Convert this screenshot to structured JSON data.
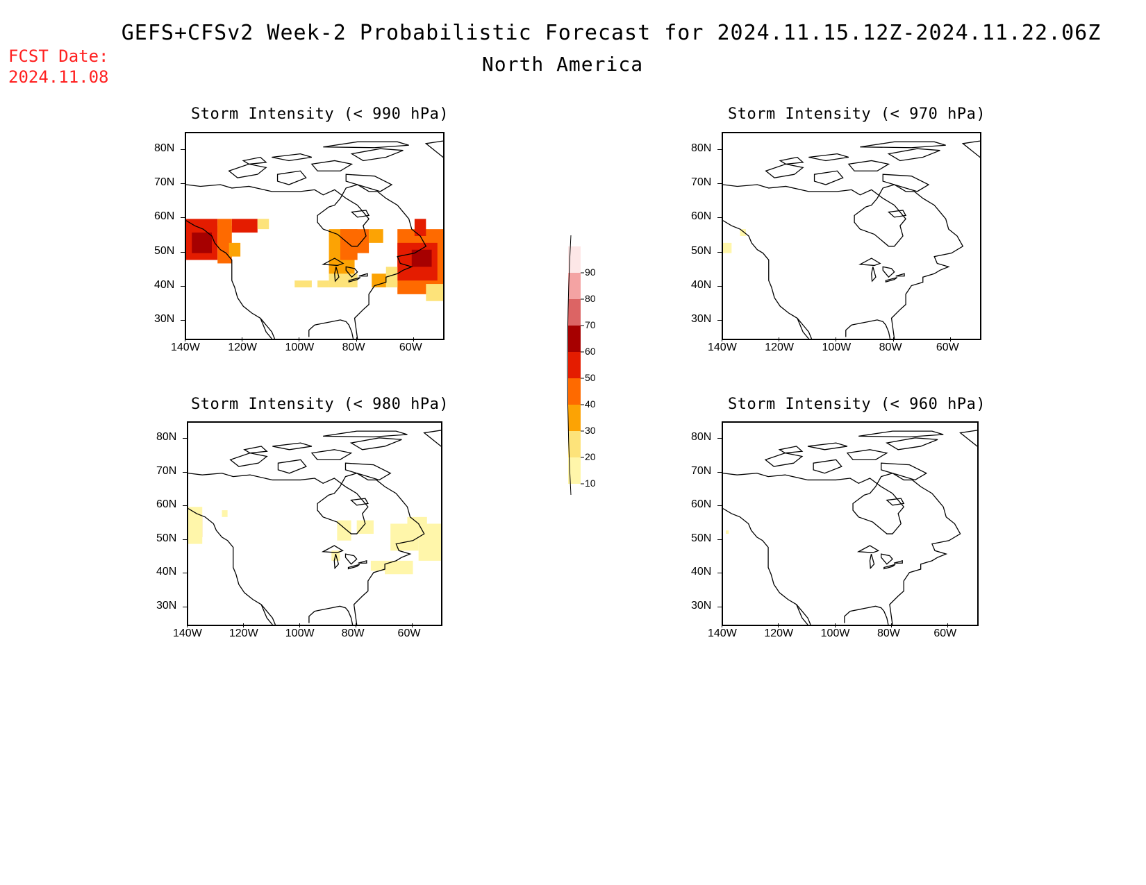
{
  "header": {
    "title": "GEFS+CFSv2 Week-2 Probabilistic Forecast for 2024.11.15.12Z-2024.11.22.06Z",
    "subtitle": "North America",
    "fcst_label": "FCST Date:",
    "fcst_date": "2024.11.08"
  },
  "panels": [
    {
      "title": "Storm Intensity (< 990 hPa)"
    },
    {
      "title": "Storm Intensity (< 970 hPa)"
    },
    {
      "title": "Storm Intensity (< 980 hPa)"
    },
    {
      "title": "Storm Intensity (< 960 hPa)"
    }
  ],
  "axes": {
    "lat_ticks": [
      "80N",
      "70N",
      "60N",
      "50N",
      "40N",
      "30N"
    ],
    "lon_ticks": [
      "140W",
      "120W",
      "100W",
      "80W",
      "60W"
    ]
  },
  "colorbar": {
    "levels": [
      "10",
      "20",
      "30",
      "40",
      "50",
      "60",
      "70",
      "80",
      "90"
    ],
    "colors": [
      "#fff6aa",
      "#fde37a",
      "#fca304",
      "#fe6a00",
      "#e41c00",
      "#a60000",
      "#dc6464",
      "#f4a3a3",
      "#fde7e7"
    ]
  }
}
